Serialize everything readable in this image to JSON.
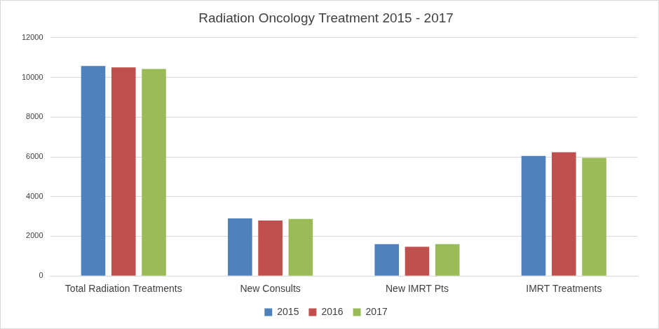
{
  "chart_data": {
    "type": "bar",
    "title": "Radiation Oncology Treatment 2015 - 2017",
    "categories": [
      "Total Radiation Treatments",
      "New Consults",
      "New IMRT Pts",
      "IMRT Treatments"
    ],
    "series": [
      {
        "name": "2015",
        "color": "#4f81bd",
        "values": [
          10570,
          2900,
          1600,
          6040
        ]
      },
      {
        "name": "2016",
        "color": "#c0504d",
        "values": [
          10500,
          2790,
          1470,
          6230
        ]
      },
      {
        "name": "2017",
        "color": "#9bbb59",
        "values": [
          10420,
          2870,
          1600,
          5950
        ]
      }
    ],
    "ylim": [
      0,
      12000
    ],
    "yticks": [
      0,
      2000,
      4000,
      6000,
      8000,
      10000,
      12000
    ],
    "grid": true,
    "legend": "bottom"
  }
}
